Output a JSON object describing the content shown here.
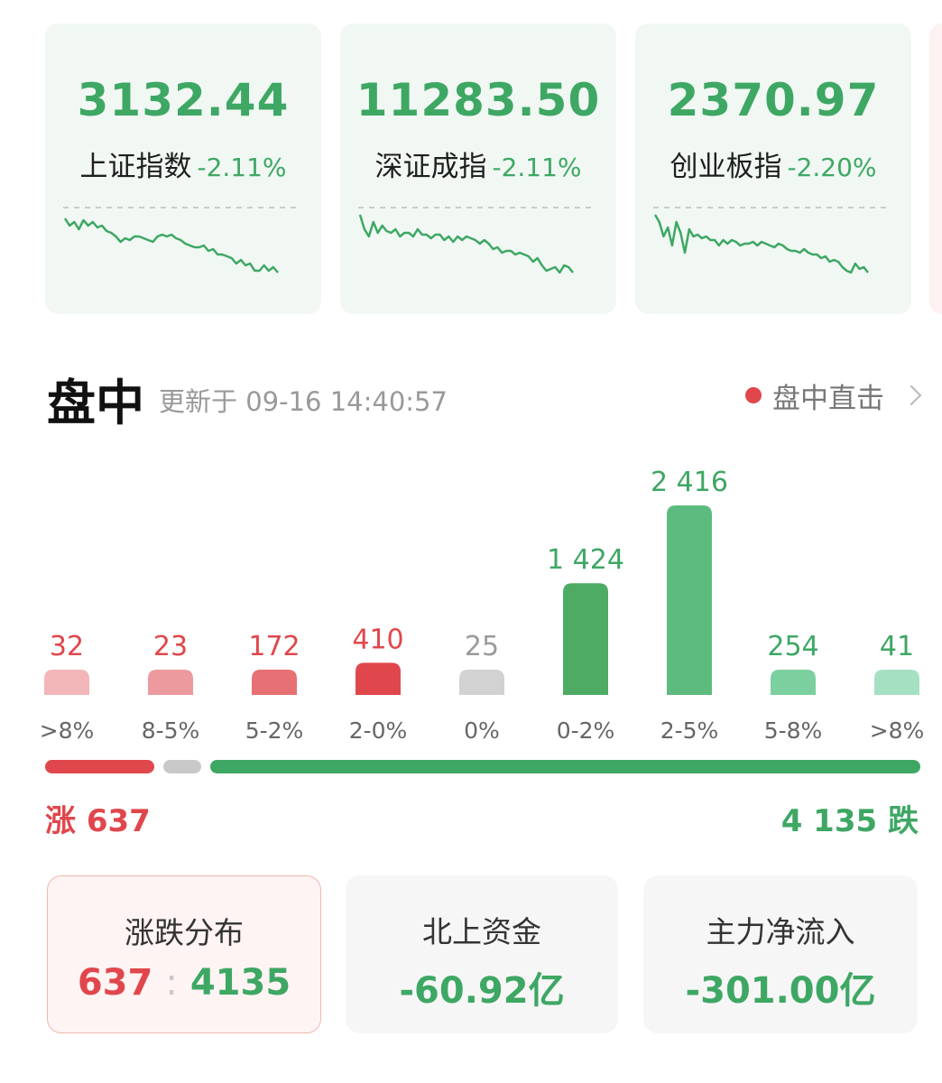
{
  "indices": [
    {
      "value": "3132.44",
      "name": "上证指数",
      "change": "-2.11%",
      "spark": [
        76,
        84,
        80,
        88,
        78,
        84,
        80,
        86,
        84,
        90,
        92,
        96,
        102,
        98,
        100,
        96,
        96,
        98,
        100,
        102,
        96,
        94,
        96,
        94,
        98,
        100,
        104,
        106,
        108,
        108,
        106,
        112,
        110,
        116,
        116,
        118,
        120,
        126,
        122,
        128,
        126,
        134,
        134,
        128,
        134,
        130,
        136
      ]
    },
    {
      "value": "11283.50",
      "name": "深证成指",
      "change": "-2.11%",
      "spark": [
        72,
        88,
        96,
        80,
        92,
        84,
        90,
        92,
        88,
        96,
        92,
        92,
        96,
        88,
        94,
        94,
        98,
        94,
        94,
        100,
        96,
        102,
        96,
        100,
        96,
        98,
        100,
        104,
        100,
        104,
        110,
        108,
        114,
        112,
        112,
        116,
        114,
        116,
        118,
        124,
        120,
        128,
        134,
        132,
        130,
        136,
        128,
        130,
        136
      ]
    },
    {
      "value": "2370.97",
      "name": "创业板指",
      "change": "-2.20%",
      "spark": [
        72,
        80,
        96,
        86,
        106,
        80,
        92,
        114,
        88,
        96,
        94,
        98,
        96,
        100,
        100,
        106,
        100,
        104,
        100,
        102,
        106,
        104,
        104,
        102,
        106,
        102,
        104,
        106,
        108,
        104,
        106,
        110,
        112,
        112,
        114,
        110,
        114,
        116,
        116,
        120,
        118,
        124,
        122,
        124,
        130,
        134,
        136,
        126,
        132,
        130,
        136
      ]
    }
  ],
  "section": {
    "title": "盘中",
    "update_label": "更新于 09-16 14:40:57",
    "live_link": "盘中直击"
  },
  "colors": {
    "up": "#e0474c",
    "down": "#3ea764",
    "flat": "#c8c8c8"
  },
  "chart_data": {
    "type": "bar",
    "categories": [
      ">8%",
      "8-5%",
      "5-2%",
      "2-0%",
      "0%",
      "0-2%",
      "2-5%",
      "5-8%",
      ">8%"
    ],
    "values": [
      32,
      23,
      172,
      410,
      25,
      1424,
      2416,
      254,
      41
    ],
    "value_labels": [
      "32",
      "23",
      "172",
      "410",
      "25",
      "1 424",
      "2 416",
      "254",
      "41"
    ],
    "bar_colors": [
      "#f2b6b9",
      "#ec9a9e",
      "#e77074",
      "#e0474c",
      "#d2d2d2",
      "#4dab64",
      "#5ebb80",
      "#7cd0a0",
      "#a6e0c2"
    ],
    "label_colors": [
      "#e0474c",
      "#e0474c",
      "#e0474c",
      "#e0474c",
      "#9a9a9a",
      "#3ea764",
      "#3ea764",
      "#3ea764",
      "#3ea764"
    ],
    "grid": false
  },
  "summary": {
    "up_label": "涨 637",
    "down_label": "4 135 跌",
    "up_count": 637,
    "flat_count": 25,
    "down_count": 4135
  },
  "cards": [
    {
      "title": "涨跌分布",
      "up": "637",
      "sep": ":",
      "down": "4135"
    },
    {
      "title": "北上资金",
      "value": "-60.92亿"
    },
    {
      "title": "主力净流入",
      "value": "-301.00亿"
    }
  ]
}
